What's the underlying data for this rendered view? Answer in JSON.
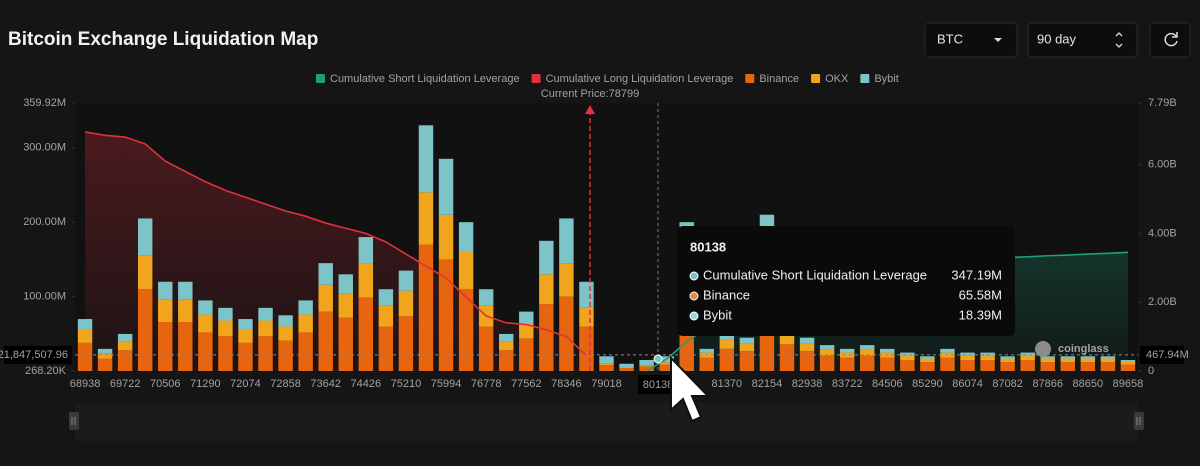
{
  "controls": {
    "coin": "BTC",
    "period": "90 day"
  },
  "watermark": "coinglass",
  "chart_data": {
    "type": "bar",
    "title": "Bitcoin Exchange Liquidation Map",
    "categories": [
      "68938",
      null,
      "69722",
      null,
      "70506",
      null,
      "71290",
      null,
      "72074",
      null,
      "72858",
      null,
      "73642",
      null,
      "74426",
      null,
      "75210",
      null,
      "75994",
      null,
      "76778",
      null,
      "77562",
      null,
      "78346",
      null,
      "79018",
      null,
      null,
      null,
      null,
      null,
      "81370",
      null,
      "82154",
      null,
      "82938",
      null,
      "83722",
      null,
      "84506",
      null,
      "85290",
      null,
      "86074",
      null,
      "87082",
      null,
      "87866",
      null,
      "88650",
      null,
      "89658"
    ],
    "series": [
      {
        "name": "Cumulative Short Liquidation Leverage",
        "type": "line",
        "axis": "y2",
        "color": "#1f9e7a",
        "values": [
          null,
          null,
          null,
          null,
          null,
          null,
          null,
          null,
          null,
          null,
          null,
          null,
          null,
          null,
          null,
          null,
          null,
          null,
          null,
          null,
          null,
          null,
          null,
          null,
          null,
          null,
          null,
          null,
          0,
          0.35,
          0.85,
          1.25,
          1.6,
          1.9,
          2.2,
          2.45,
          2.6,
          2.75,
          2.85,
          2.95,
          3.05,
          3.1,
          3.15,
          3.2,
          3.25,
          3.28,
          3.3,
          3.32,
          3.35,
          3.37,
          3.4,
          3.42,
          3.45
        ]
      },
      {
        "name": "Cumulative Long Liquidation Leverage",
        "type": "line",
        "axis": "y2",
        "color": "#e0323c",
        "values": [
          6.95,
          6.85,
          6.8,
          6.6,
          6.1,
          5.8,
          5.5,
          5.25,
          5.05,
          4.85,
          4.65,
          4.5,
          4.3,
          4.15,
          4.0,
          3.75,
          3.4,
          3.05,
          2.7,
          2.15,
          1.6,
          1.4,
          1.35,
          1.2,
          1.0,
          0.45,
          null,
          null,
          null,
          null,
          null,
          null,
          null,
          null,
          null,
          null,
          null,
          null,
          null,
          null,
          null,
          null,
          null,
          null,
          null,
          null,
          null,
          null,
          null,
          null,
          null,
          null,
          null
        ]
      },
      {
        "name": "Binance",
        "type": "bar",
        "color": "#e8650f",
        "values": [
          38,
          17,
          28,
          110,
          66,
          66,
          52,
          47,
          38,
          47,
          41,
          52,
          80,
          72,
          99,
          60,
          74,
          170,
          150,
          110,
          60,
          28,
          44,
          90,
          100,
          60,
          8,
          4,
          6,
          9,
          66,
          18,
          30,
          27,
          120,
          36,
          27,
          21,
          18,
          21,
          18,
          15,
          12,
          18,
          15,
          15,
          12,
          15,
          12,
          12,
          12,
          12,
          9
        ]
      },
      {
        "name": "OKX",
        "type": "bar",
        "color": "#f0a51c",
        "values": [
          18,
          7,
          12,
          45,
          30,
          30,
          24,
          21,
          18,
          21,
          19,
          24,
          36,
          32,
          45,
          28,
          34,
          70,
          60,
          50,
          28,
          12,
          20,
          40,
          45,
          25,
          2,
          1,
          2,
          3,
          40,
          7,
          12,
          10,
          60,
          14,
          10,
          8,
          7,
          8,
          7,
          6,
          5,
          7,
          6,
          6,
          5,
          6,
          5,
          5,
          5,
          5,
          4
        ]
      },
      {
        "name": "Bybit",
        "type": "bar",
        "color": "#7cc4c8",
        "values": [
          14,
          6,
          10,
          50,
          24,
          24,
          19,
          17,
          14,
          17,
          15,
          19,
          29,
          26,
          36,
          22,
          27,
          90,
          75,
          40,
          22,
          10,
          16,
          45,
          60,
          35,
          10,
          5,
          7,
          8,
          94,
          5,
          8,
          8,
          30,
          10,
          8,
          6,
          5,
          6,
          5,
          4,
          3,
          5,
          4,
          4,
          3,
          4,
          3,
          3,
          3,
          3,
          2
        ]
      }
    ],
    "ylim": [
      0.2682,
      359.92
    ],
    "yticks": [
      {
        "value": 0.2682,
        "label": "268.20K"
      },
      {
        "value": 100,
        "label": "100.00M"
      },
      {
        "value": 200,
        "label": "200.00M"
      },
      {
        "value": 300,
        "label": "300.00M"
      },
      {
        "value": 359.92,
        "label": "359.92M"
      }
    ],
    "y2lim": [
      0,
      7.79
    ],
    "y2ticks": [
      0,
      {
        "value": 2,
        "label": "2.00B"
      },
      {
        "value": 4,
        "label": "4.00B"
      },
      {
        "value": 6,
        "label": "6.00B"
      },
      {
        "value": 7.79,
        "label": "7.79B"
      }
    ],
    "grid": false,
    "annotation": "Current Price:78799",
    "crosshair": {
      "y": {
        "value": 21.84750796,
        "label": "21,847,507.96"
      },
      "y2": {
        "value": 0.46794,
        "label": "467.94M"
      }
    },
    "tooltip": {
      "title": "80138",
      "rows": [
        {
          "name": "Cumulative Short Liquidation Leverage",
          "color": "#7cc4c8",
          "value": "347.19M"
        },
        {
          "name": "Binance",
          "color": "#e8864a",
          "value": "65.58M"
        },
        {
          "name": "Bybit",
          "color": "#9fd3d6",
          "value": "18.39M"
        }
      ]
    }
  }
}
